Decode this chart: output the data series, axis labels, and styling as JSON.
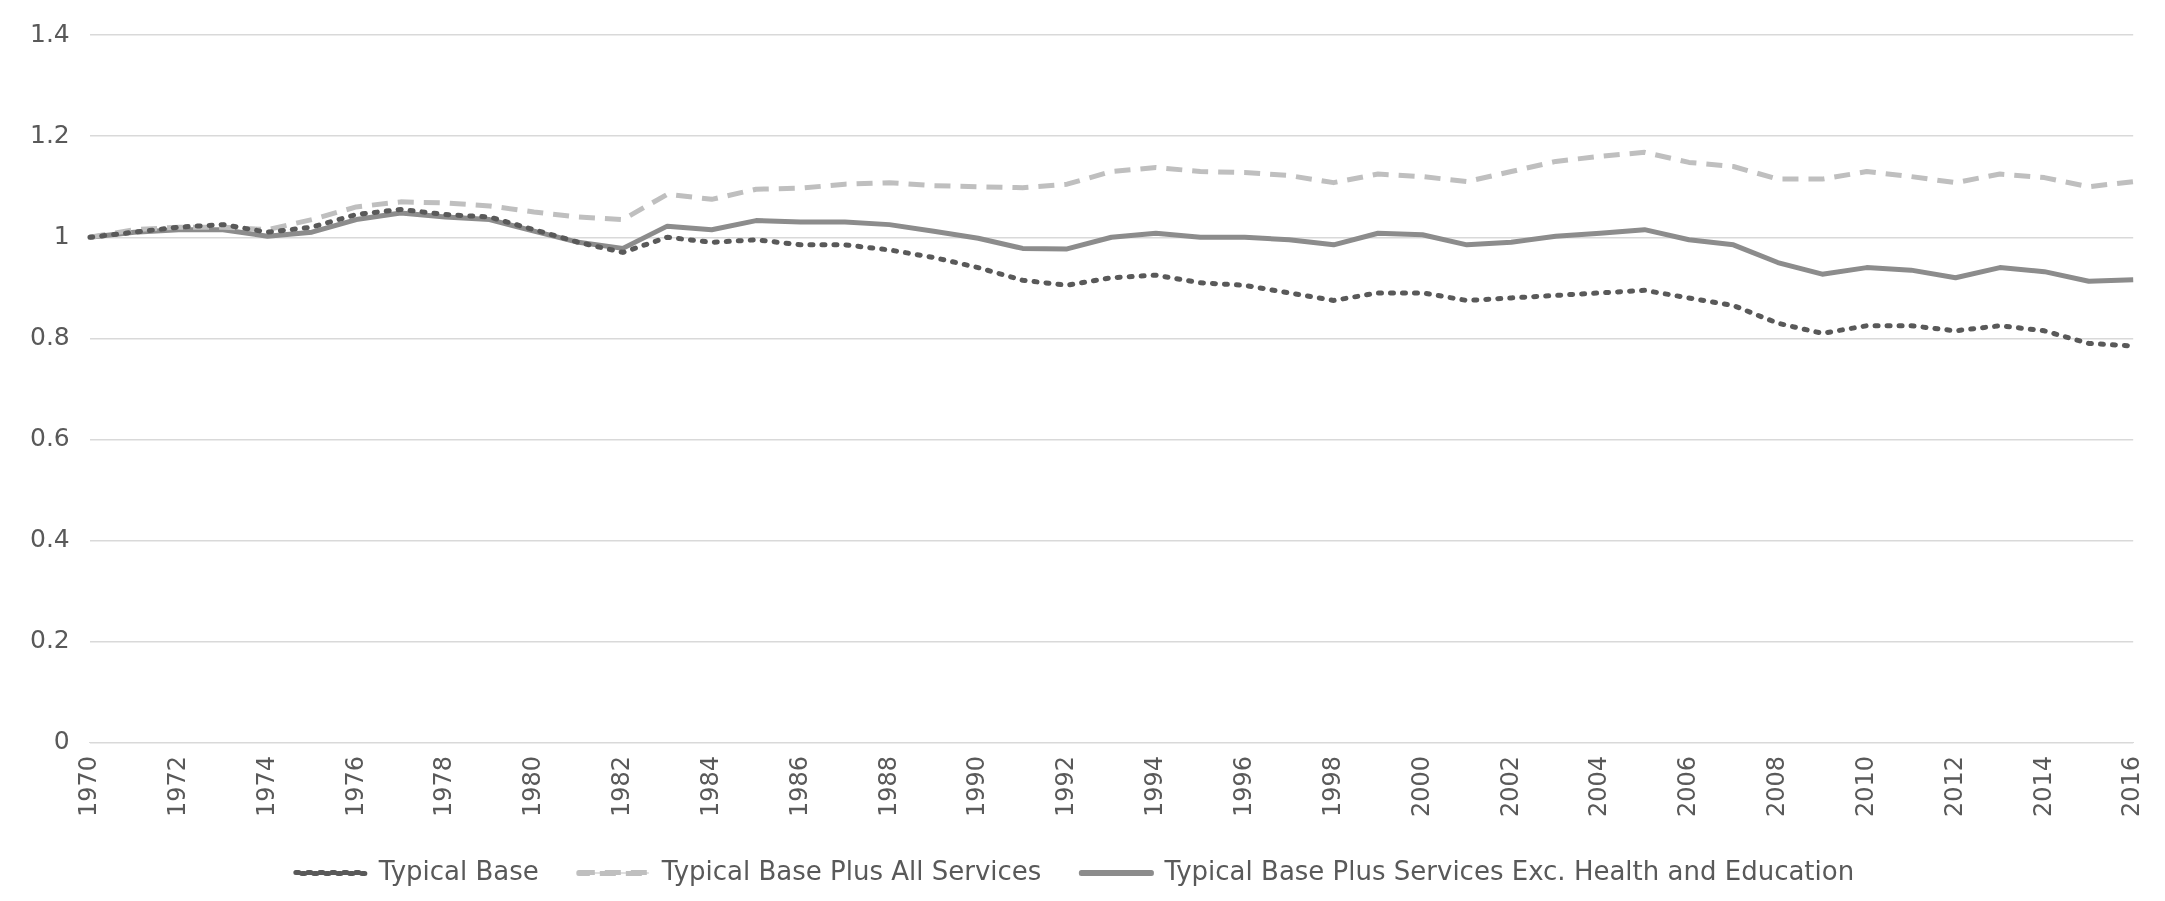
{
  "chart_data": {
    "type": "line",
    "categories": [
      "1970",
      null,
      "1972",
      null,
      "1974",
      null,
      "1976",
      null,
      "1978",
      null,
      "1980",
      null,
      "1982",
      null,
      "1984",
      null,
      "1986",
      null,
      "1988",
      null,
      "1990",
      null,
      "1992",
      null,
      "1994",
      null,
      "1996",
      null,
      "1998",
      null,
      "2000",
      null,
      "2002",
      null,
      "2004",
      null,
      "2006",
      null,
      "2008",
      null,
      "2010",
      null,
      "2012",
      null,
      "2014",
      null,
      "2016"
    ],
    "series": [
      {
        "name": "Typical Base",
        "color": "#595959",
        "line_style": "dotted",
        "values": [
          1.0,
          1.01,
          1.02,
          1.025,
          1.01,
          1.02,
          1.045,
          1.055,
          1.045,
          1.04,
          1.015,
          0.99,
          0.97,
          1.0,
          0.99,
          0.995,
          0.985,
          0.985,
          0.975,
          0.96,
          0.94,
          0.915,
          0.905,
          0.92,
          0.925,
          0.91,
          0.905,
          0.89,
          0.875,
          0.89,
          0.89,
          0.875,
          0.88,
          0.885,
          0.89,
          0.895,
          0.88,
          0.865,
          0.83,
          0.81,
          0.825,
          0.825,
          0.815,
          0.825,
          0.815,
          0.79,
          0.785
        ]
      },
      {
        "name": "Typical Base Plus All Services",
        "color": "#bfbfbf",
        "line_style": "dashed",
        "values": [
          1.0,
          1.015,
          1.02,
          1.02,
          1.015,
          1.035,
          1.06,
          1.07,
          1.068,
          1.062,
          1.05,
          1.04,
          1.035,
          1.085,
          1.075,
          1.095,
          1.097,
          1.105,
          1.108,
          1.102,
          1.1,
          1.098,
          1.105,
          1.13,
          1.138,
          1.13,
          1.128,
          1.122,
          1.108,
          1.125,
          1.12,
          1.11,
          1.13,
          1.15,
          1.16,
          1.168,
          1.148,
          1.14,
          1.115,
          1.115,
          1.13,
          1.12,
          1.108,
          1.125,
          1.118,
          1.1,
          1.11
        ]
      },
      {
        "name": "Typical Base Plus Services Exc. Health and Education",
        "color": "#8c8c8c",
        "line_style": "solid",
        "values": [
          1.0,
          1.01,
          1.015,
          1.015,
          1.002,
          1.01,
          1.035,
          1.048,
          1.04,
          1.035,
          1.012,
          0.99,
          0.978,
          1.022,
          1.015,
          1.033,
          1.03,
          1.03,
          1.025,
          1.012,
          0.998,
          0.978,
          0.977,
          1.0,
          1.008,
          1.0,
          1.0,
          0.995,
          0.985,
          1.008,
          1.005,
          0.985,
          0.99,
          1.002,
          1.008,
          1.015,
          0.995,
          0.985,
          0.95,
          0.927,
          0.94,
          0.935,
          0.92,
          0.94,
          0.932,
          0.913,
          0.916
        ]
      }
    ],
    "ylim": [
      0,
      1.4
    ],
    "yticks": [
      0,
      0.2,
      0.4,
      0.6,
      0.8,
      1,
      1.2,
      1.4
    ],
    "grid": "y",
    "legend": "bottom",
    "marker": "none"
  }
}
